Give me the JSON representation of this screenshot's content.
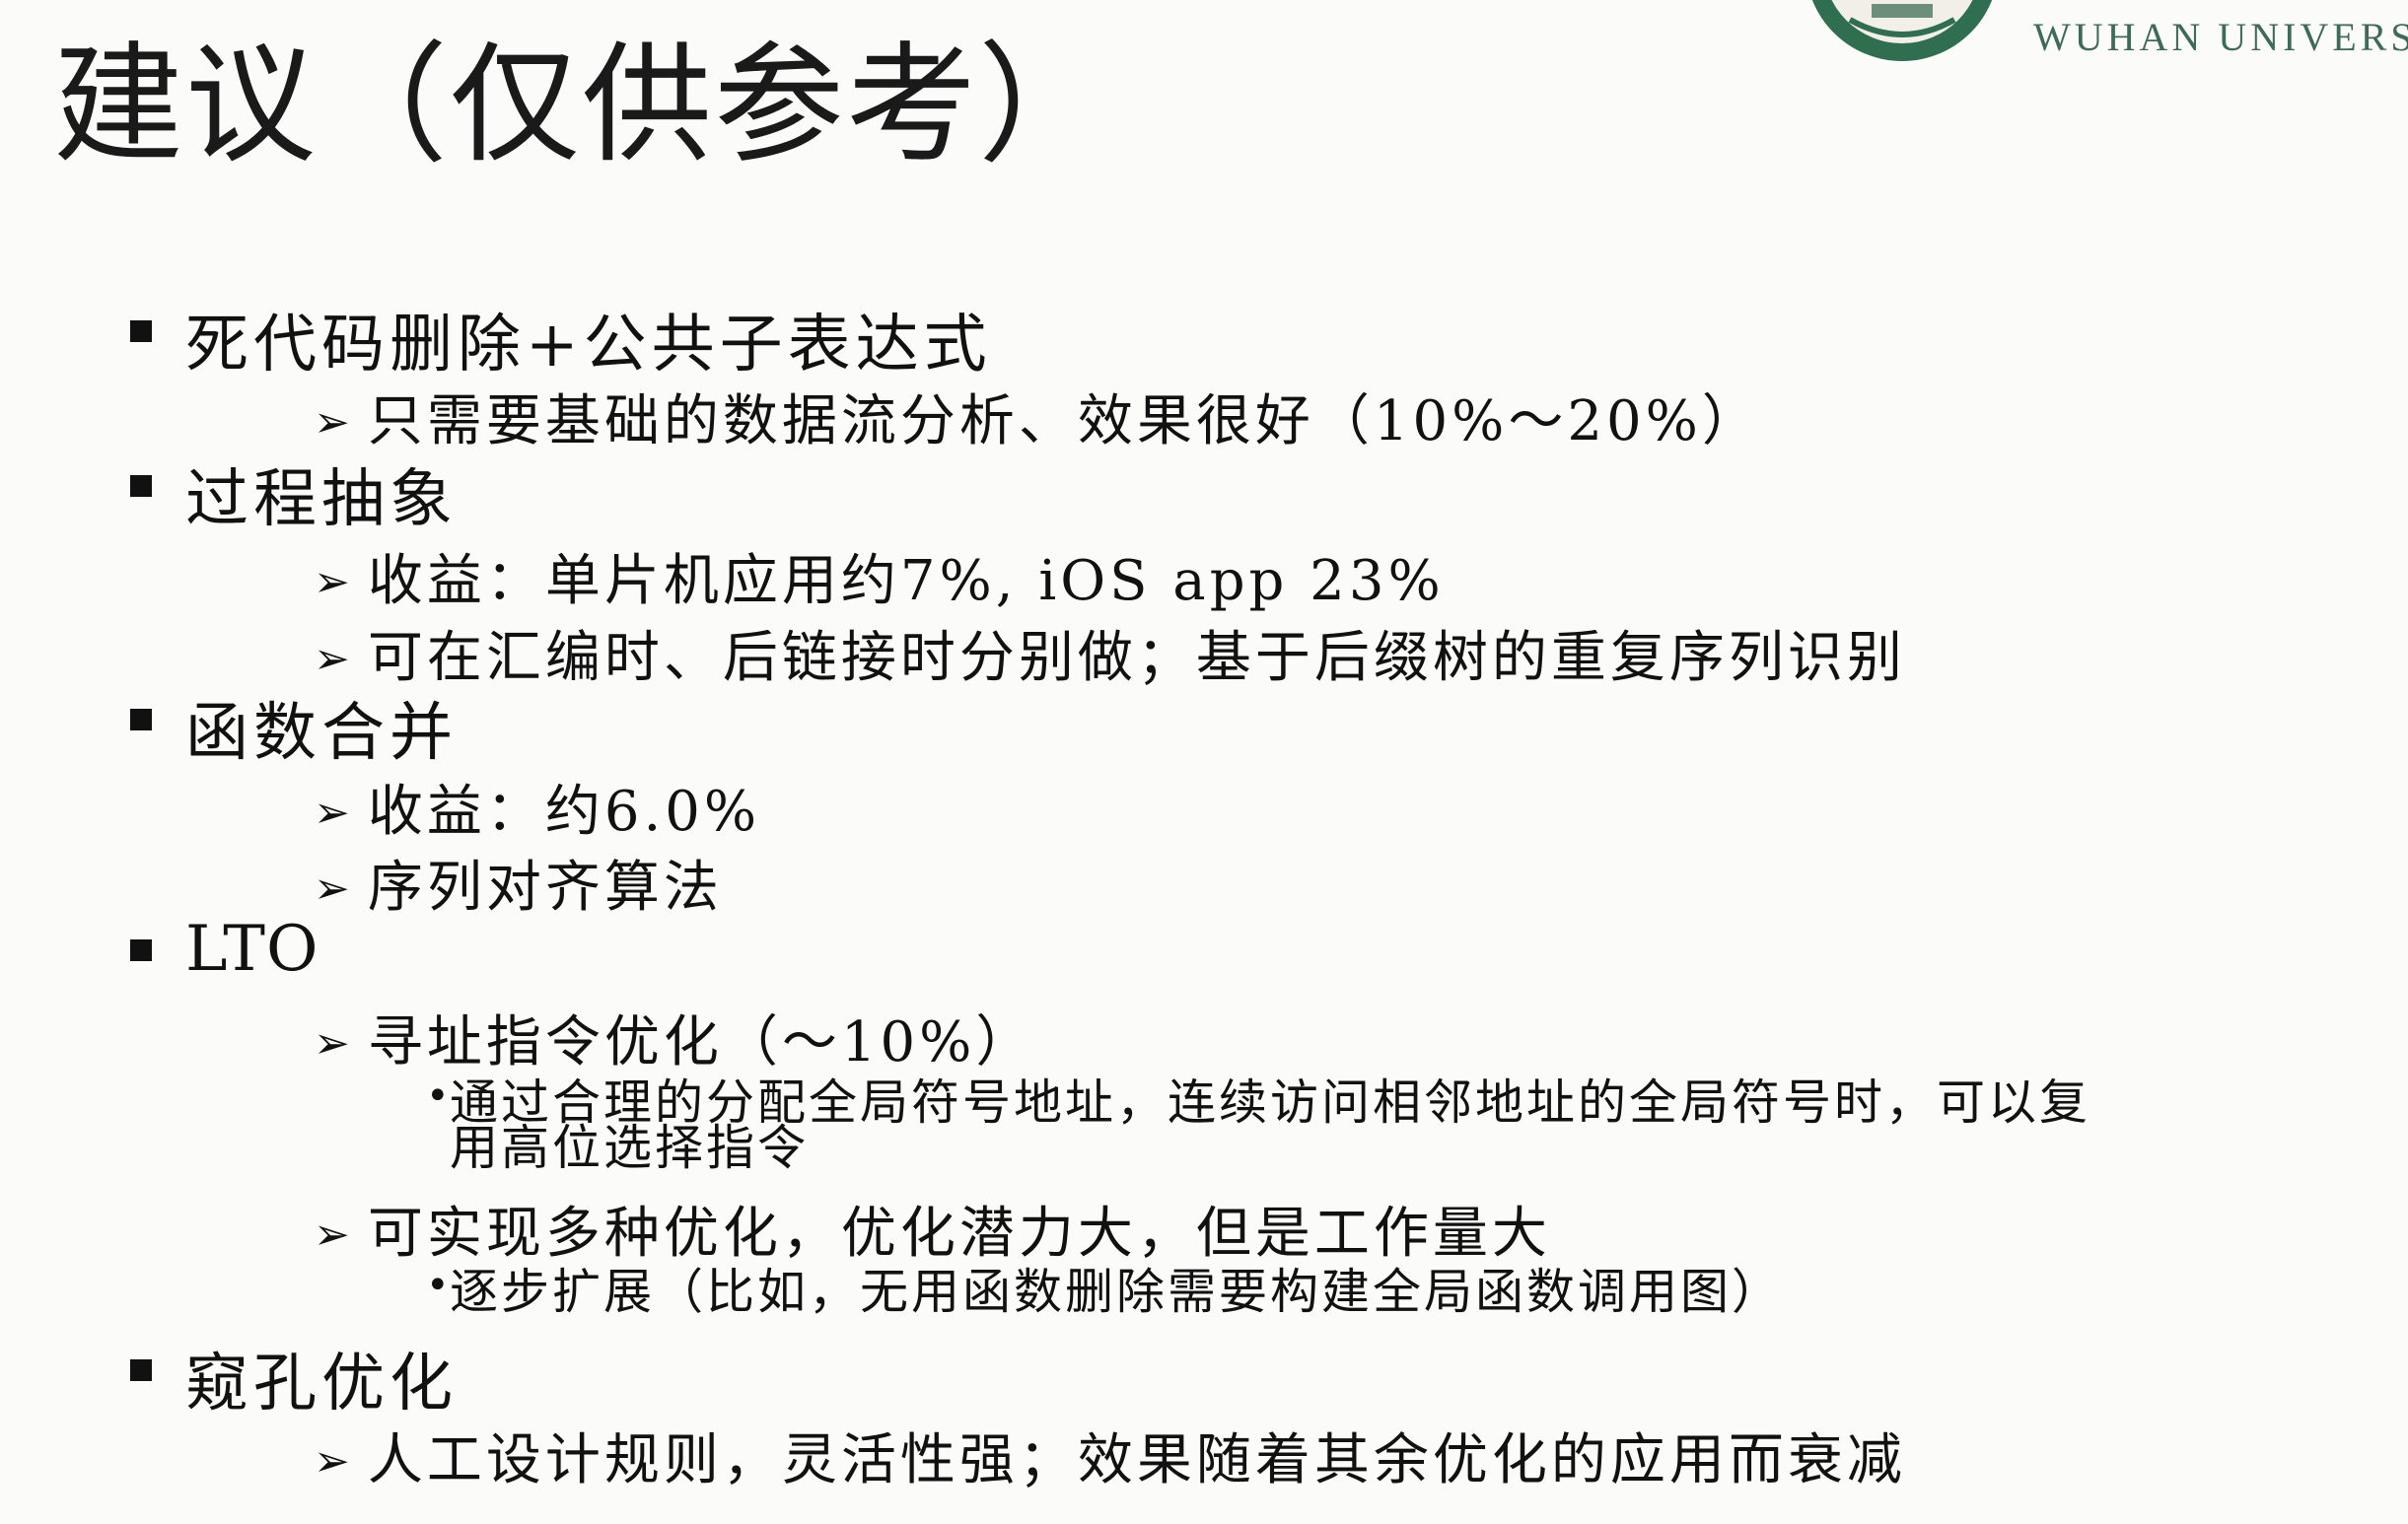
{
  "header": {
    "university_name": "WUHAN UNIVERSITY",
    "title": "建议（仅供参考）",
    "colors": {
      "logo_green": "#2f6e4f",
      "logo_band": "#3f6fa8"
    }
  },
  "content": {
    "items": [
      {
        "text": "死代码删除+公共子表达式",
        "subs": [
          {
            "text": "只需要基础的数据流分析、效果很好（10%～20%）"
          }
        ]
      },
      {
        "text": "过程抽象",
        "subs": [
          {
            "text": "收益：单片机应用约7%, iOS app 23%"
          },
          {
            "text": "可在汇编时、后链接时分别做；基于后缀树的重复序列识别"
          }
        ]
      },
      {
        "text": "函数合并",
        "subs": [
          {
            "text": "收益：约6.0%"
          },
          {
            "text": "序列对齐算法"
          }
        ]
      },
      {
        "text": "LTO",
        "subs": [
          {
            "text": "寻址指令优化（～10%）",
            "points": [
              {
                "line1": "通过合理的分配全局符号地址，连续访问相邻地址的全局符号时，可以复",
                "line2": "用高位选择指令"
              }
            ]
          },
          {
            "text": "可实现多种优化，优化潜力大，但是工作量大",
            "points": [
              {
                "line1": "逐步扩展（比如，无用函数删除需要构建全局函数调用图）"
              }
            ]
          }
        ]
      },
      {
        "text": "窥孔优化",
        "subs": [
          {
            "text": "人工设计规则，灵活性强；效果随着其余优化的应用而衰减"
          }
        ]
      }
    ]
  }
}
